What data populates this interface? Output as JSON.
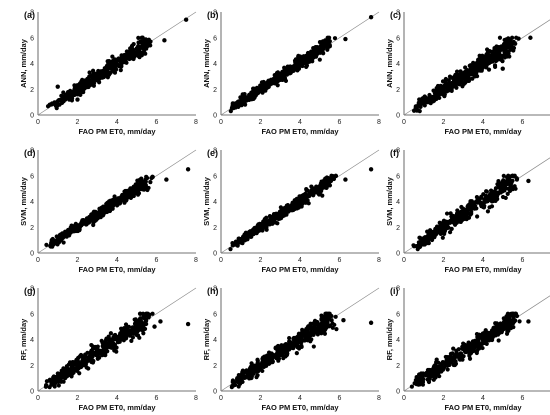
{
  "chart_data": [
    {
      "type": "scatter",
      "panel_label": "(a)",
      "xlabel": "FAO PM ET0, mm/day",
      "ylabel": "ANN, mm/day",
      "xlim": [
        0,
        8
      ],
      "ylim": [
        0,
        8
      ],
      "x_ticks": [
        "0",
        "2",
        "4",
        "6",
        "8"
      ],
      "y_ticks": [
        "0",
        "2",
        "4",
        "6",
        "8"
      ],
      "reference_line": "1:1",
      "spread": 0.26,
      "seed": 11,
      "outliers": [
        [
          7.5,
          7.4
        ],
        [
          6.4,
          5.8
        ],
        [
          5.3,
          6.0
        ],
        [
          1.0,
          2.2
        ],
        [
          2.0,
          1.2
        ],
        [
          0.6,
          0.8
        ]
      ]
    },
    {
      "type": "scatter",
      "panel_label": "(b)",
      "xlabel": "FAO PM ET0, mm/day",
      "ylabel": "ANN, mm/day",
      "xlim": [
        0,
        8
      ],
      "ylim": [
        0,
        8
      ],
      "x_ticks": [
        "0",
        "2",
        "4",
        "6",
        "8"
      ],
      "y_ticks": [
        "0",
        "2",
        "4",
        "6",
        "8"
      ],
      "reference_line": "1:1",
      "spread": 0.22,
      "seed": 23,
      "outliers": [
        [
          7.6,
          7.6
        ],
        [
          6.3,
          5.9
        ],
        [
          1.1,
          1.6
        ],
        [
          0.6,
          0.9
        ]
      ]
    },
    {
      "type": "scatter",
      "panel_label": "(c)",
      "xlabel": "FAO PM ET0, mm/day",
      "ylabel": "ANN, mm/day",
      "xlim": [
        0,
        8
      ],
      "ylim": [
        0,
        8
      ],
      "x_ticks": [
        "0",
        "2",
        "4",
        "6",
        "8"
      ],
      "y_ticks": [
        "0",
        "2",
        "4",
        "6",
        "8"
      ],
      "reference_line": "1:1",
      "spread": 0.32,
      "seed": 37,
      "outliers": [
        [
          7.6,
          7.2
        ],
        [
          6.4,
          6.0
        ],
        [
          5.0,
          3.6
        ],
        [
          0.8,
          1.0
        ]
      ]
    },
    {
      "type": "scatter",
      "panel_label": "(d)",
      "xlabel": "FAO PM ET0, mm/day",
      "ylabel": "SVM, mm/day",
      "xlim": [
        0,
        8
      ],
      "ylim": [
        0,
        8
      ],
      "x_ticks": [
        "0",
        "2",
        "4",
        "6",
        "8"
      ],
      "y_ticks": [
        "0",
        "2",
        "4",
        "6",
        "8"
      ],
      "reference_line": "1:1",
      "spread": 0.22,
      "seed": 41,
      "outliers": [
        [
          7.6,
          6.5
        ],
        [
          6.5,
          5.7
        ],
        [
          0.7,
          1.0
        ]
      ]
    },
    {
      "type": "scatter",
      "panel_label": "(e)",
      "xlabel": "FAO PM ET0, mm/day",
      "ylabel": "SVM, mm/day",
      "xlim": [
        0,
        8
      ],
      "ylim": [
        0,
        8
      ],
      "x_ticks": [
        "0",
        "2",
        "4",
        "6",
        "8"
      ],
      "y_ticks": [
        "0",
        "2",
        "4",
        "6",
        "8"
      ],
      "reference_line": "1:1",
      "spread": 0.22,
      "seed": 53,
      "outliers": [
        [
          7.6,
          6.5
        ],
        [
          6.3,
          5.7
        ],
        [
          0.6,
          0.6
        ]
      ]
    },
    {
      "type": "scatter",
      "panel_label": "(f)",
      "xlabel": "FAO PM ET0, mm/day",
      "ylabel": "SVM, mm/day",
      "xlim": [
        0,
        8
      ],
      "ylim": [
        0,
        8
      ],
      "x_ticks": [
        "0",
        "2",
        "4",
        "6",
        "8"
      ],
      "y_ticks": [
        "0",
        "2",
        "4",
        "6",
        "8"
      ],
      "reference_line": "1:1",
      "spread": 0.3,
      "seed": 67,
      "outliers": [
        [
          7.6,
          6.1
        ],
        [
          6.3,
          5.6
        ],
        [
          0.9,
          0.7
        ]
      ]
    },
    {
      "type": "scatter",
      "panel_label": "(g)",
      "xlabel": "FAO PM ET0, mm/day",
      "ylabel": "RF, mm/day",
      "xlim": [
        0,
        8
      ],
      "ylim": [
        0,
        8
      ],
      "x_ticks": [
        "0",
        "2",
        "4",
        "6",
        "8"
      ],
      "y_ticks": [
        "0",
        "2",
        "4",
        "6",
        "8"
      ],
      "reference_line": "1:1",
      "spread": 0.34,
      "seed": 71,
      "outliers": [
        [
          7.6,
          5.2
        ],
        [
          6.2,
          5.4
        ],
        [
          5.9,
          5.0
        ],
        [
          0.6,
          0.8
        ]
      ]
    },
    {
      "type": "scatter",
      "panel_label": "(h)",
      "xlabel": "FAO PM ET0, mm/day",
      "ylabel": "RF, mm/day",
      "xlim": [
        0,
        8
      ],
      "ylim": [
        0,
        8
      ],
      "x_ticks": [
        "0",
        "2",
        "4",
        "6",
        "8"
      ],
      "y_ticks": [
        "0",
        "2",
        "4",
        "6",
        "8"
      ],
      "reference_line": "1:1",
      "spread": 0.32,
      "seed": 83,
      "outliers": [
        [
          7.6,
          5.3
        ],
        [
          6.2,
          5.5
        ],
        [
          0.6,
          0.7
        ]
      ]
    },
    {
      "type": "scatter",
      "panel_label": "(i)",
      "xlabel": "FAO PM ET0, mm/day",
      "ylabel": "RF, mm/day",
      "xlim": [
        0,
        8
      ],
      "ylim": [
        0,
        8
      ],
      "x_ticks": [
        "0",
        "2",
        "4",
        "6",
        "8"
      ],
      "y_ticks": [
        "0",
        "2",
        "4",
        "6",
        "8"
      ],
      "reference_line": "1:1",
      "spread": 0.32,
      "seed": 97,
      "outliers": [
        [
          7.6,
          5.2
        ],
        [
          6.3,
          5.4
        ],
        [
          0.8,
          0.8
        ]
      ]
    }
  ],
  "colors": {
    "points": "#000000",
    "reference_line": "#8a8a8a",
    "axes": "#444444",
    "tick_text": "#222222"
  }
}
